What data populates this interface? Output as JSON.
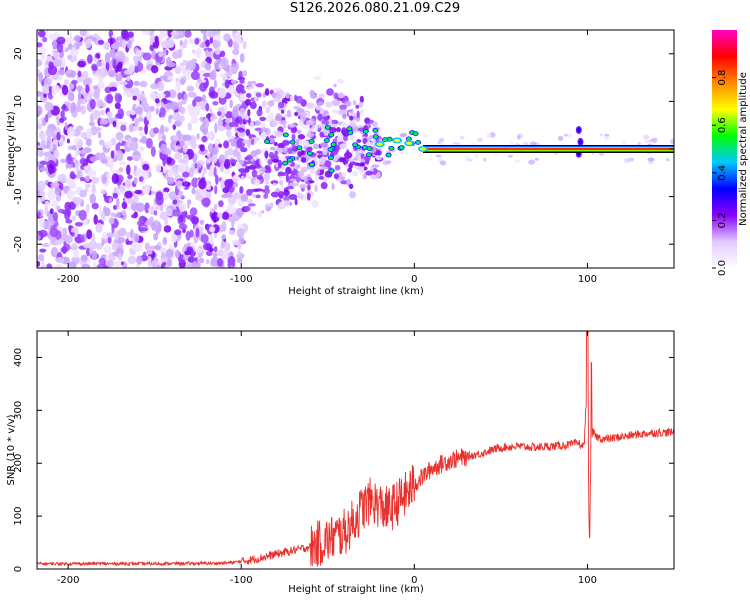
{
  "title": "S126.2026.080.21.09.C29",
  "chart_data": [
    {
      "type": "heatmap",
      "name": "spectrogram",
      "xlabel": "Height of straight line (km)",
      "ylabel": "Frequency (Hz)",
      "xlim": [
        -218,
        150
      ],
      "ylim": [
        -25,
        25
      ],
      "xticks": [
        -200,
        -100,
        0,
        100
      ],
      "xticklabels": [
        "-200",
        "-100",
        "0",
        "100"
      ],
      "yticks": [
        20,
        10,
        0,
        -10,
        -20
      ],
      "yticklabels": [
        "20",
        "10",
        "0",
        "-10",
        "-20"
      ],
      "signal_line": {
        "frequency": 0.0,
        "x_start": 5,
        "x_end": 150
      },
      "colorbar": {
        "label": "Normalized spectral amplitude",
        "range": [
          0.0,
          1.0
        ],
        "ticks": [
          "0.0",
          "0.2",
          "0.4",
          "0.6",
          "0.8"
        ],
        "colors": [
          "#ffffff",
          "#e2c8ff",
          "#8a00ff",
          "#0000ff",
          "#00c8ff",
          "#00ff00",
          "#ffff00",
          "#ff8800",
          "#ff0000",
          "#ff00c8"
        ]
      }
    },
    {
      "type": "line",
      "name": "snr",
      "xlabel": "Height of straight line (km)",
      "ylabel": "SNR (10 * v/v)",
      "xlim": [
        -218,
        150
      ],
      "ylim": [
        0,
        450
      ],
      "xticks": [
        -200,
        -100,
        0,
        100
      ],
      "xticklabels": [
        "-200",
        "-100",
        "0",
        "100"
      ],
      "yticks": [
        0,
        100,
        200,
        300,
        400
      ],
      "yticklabels": [
        "0",
        "100",
        "200",
        "300",
        "400"
      ],
      "color": "#e8302c",
      "series": [
        {
          "name": "SNR",
          "x": [
            -218,
            -150,
            -110,
            -100,
            -90,
            -80,
            -70,
            -60,
            -50,
            -45,
            -40,
            -35,
            -30,
            -25,
            -20,
            -15,
            -10,
            -5,
            0,
            10,
            20,
            30,
            40,
            50,
            60,
            70,
            80,
            90,
            95,
            98,
            100,
            101,
            102,
            103,
            105,
            110,
            120,
            130,
            140,
            150
          ],
          "y": [
            10,
            10,
            11,
            14,
            20,
            28,
            35,
            42,
            55,
            62,
            70,
            90,
            115,
            130,
            120,
            110,
            125,
            140,
            160,
            190,
            205,
            212,
            220,
            230,
            232,
            230,
            232,
            235,
            238,
            230,
            360,
            60,
            200,
            260,
            250,
            245,
            250,
            255,
            258,
            258
          ]
        }
      ],
      "annotations": [
        {
          "x": 100,
          "y": 450,
          "note": "spike"
        }
      ]
    }
  ]
}
